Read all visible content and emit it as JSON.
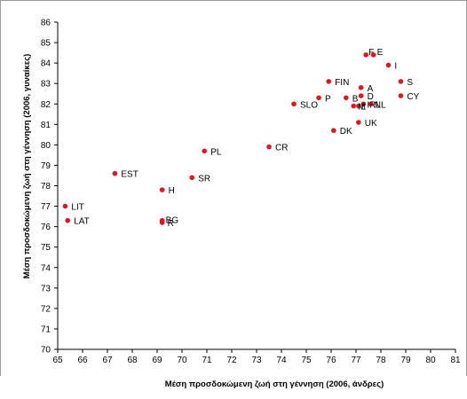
{
  "chart_data": {
    "type": "scatter",
    "xlabel": "Μέση προσδοκώμενη ζωή στη γέννηση (2006, άνδρες)",
    "ylabel": "Μέση προσδοκώμενη ζωή στη γέννηση (2006, γυναίκες)",
    "xlim": [
      65,
      81
    ],
    "ylim": [
      70,
      86
    ],
    "x_ticks": [
      "65",
      "66",
      "67",
      "68",
      "69",
      "70",
      "71",
      "72",
      "73",
      "74",
      "75",
      "76",
      "77",
      "78",
      "79",
      "80",
      "81"
    ],
    "y_ticks": [
      "70",
      "71",
      "72",
      "73",
      "74",
      "75",
      "76",
      "77",
      "78",
      "79",
      "80",
      "81",
      "82",
      "83",
      "84",
      "85",
      "86"
    ],
    "grid": false,
    "marker_color": "#e8141c",
    "points": [
      {
        "label": "LIT",
        "x": 65.3,
        "y": 77.0
      },
      {
        "label": "LAT",
        "x": 65.4,
        "y": 76.3
      },
      {
        "label": "EST",
        "x": 67.3,
        "y": 78.6
      },
      {
        "label": "H",
        "x": 69.2,
        "y": 77.8
      },
      {
        "label": "BG",
        "x": 69.2,
        "y": 76.3
      },
      {
        "label": "R",
        "x": 69.2,
        "y": 76.2
      },
      {
        "label": "SR",
        "x": 70.4,
        "y": 78.4
      },
      {
        "label": "PL",
        "x": 70.9,
        "y": 79.7
      },
      {
        "label": "CR",
        "x": 73.5,
        "y": 79.9
      },
      {
        "label": "SLO",
        "x": 74.5,
        "y": 82.0
      },
      {
        "label": "P",
        "x": 75.5,
        "y": 82.3
      },
      {
        "label": "DK",
        "x": 76.1,
        "y": 80.7
      },
      {
        "label": "FIN",
        "x": 75.9,
        "y": 83.1
      },
      {
        "label": "B",
        "x": 76.6,
        "y": 82.3
      },
      {
        "label": "A",
        "x": 77.2,
        "y": 82.8
      },
      {
        "label": "D",
        "x": 77.2,
        "y": 82.4
      },
      {
        "label": "IRL",
        "x": 77.3,
        "y": 82.0
      },
      {
        "label": "L",
        "x": 77.1,
        "y": 81.9
      },
      {
        "label": "M",
        "x": 76.9,
        "y": 81.9
      },
      {
        "label": "NL",
        "x": 77.6,
        "y": 82.0
      },
      {
        "label": "UK",
        "x": 77.1,
        "y": 81.1
      },
      {
        "label": "F",
        "x": 77.4,
        "y": 84.4
      },
      {
        "label": "E",
        "x": 77.7,
        "y": 84.4
      },
      {
        "label": "I",
        "x": 78.3,
        "y": 83.9
      },
      {
        "label": "S",
        "x": 78.8,
        "y": 83.1
      },
      {
        "label": "CY",
        "x": 78.8,
        "y": 82.4
      }
    ]
  }
}
